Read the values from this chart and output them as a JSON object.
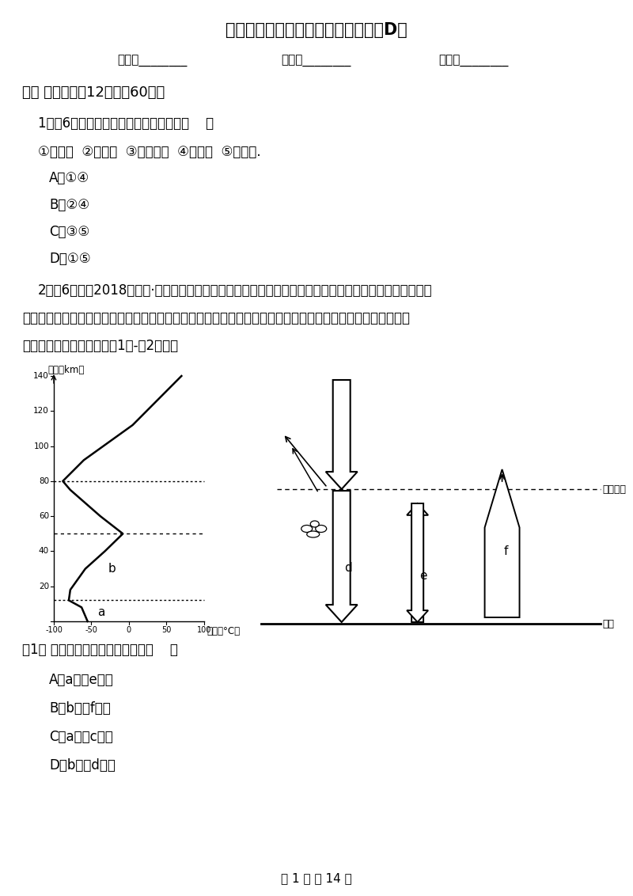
{
  "title": "銀川市高一上学期地理期中考试试卷D卷",
  "bg_color": "#ffffff",
  "text_color": "#000000",
  "header_name": "姓名：________",
  "header_class": "班级：________",
  "header_score": "成绩：________",
  "section1_title": "一、 单选题（內12题；內60分）",
  "q1_stem": "1．（6分）「星系」级别的天体系统是（    ）",
  "q1_opts": "①太阳系  ②地月系  ③河外星系  ④銀河系  ⑤总星系.",
  "q1_A": "A．①④",
  "q1_B": "B．②④",
  "q1_C": "C．③⑤",
  "q1_D": "D．①⑤",
  "q2_stem": "2．（6分）（2018高一上·杭州期中）有科学家通过实验提供了治理全球变暖的新视角，其主要是向高空发",
  "q2_stem2": "射一颗热气球，这颗热气球在平流层喷射雾状的金刚石粉、氧化铝、方解石等物质，进而能冷却地球的同时修复",
  "q2_stem3": "臭氧层。结合下图，完成（1）-（2）题。",
  "q2_sub1_stem": "（1） 全球变暖的产生主要是因为（    ）",
  "q2_sub1_A": "A．a层的e增大",
  "q2_sub1_B": "B．b层的f减小",
  "q2_sub1_C": "C．a层的c减小",
  "q2_sub1_D": "D．b层的d增大",
  "footer": "第 1 页 共 14 页",
  "label_a": "a",
  "label_b": "b",
  "label_d": "d",
  "label_e": "e",
  "label_f": "f",
  "label_atm_top": "大气上界",
  "label_ground": "地面",
  "label_height": "高度（km）",
  "label_temp": "温度（°C）"
}
